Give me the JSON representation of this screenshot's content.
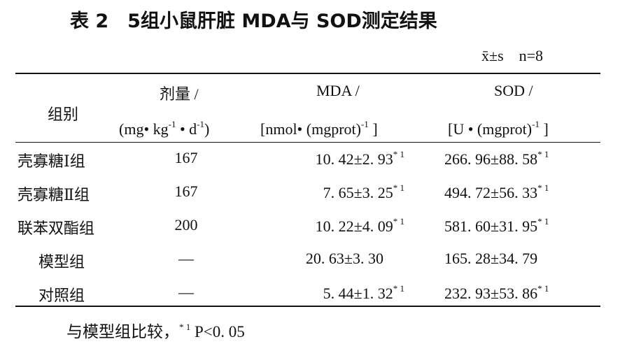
{
  "title": "表 2　5组小鼠肝脏 MDA与 SOD测定结果",
  "note": "x̄±s　n=8",
  "header": {
    "group": "组别",
    "dose": {
      "main": "剂量 /",
      "unit": [
        "(mg• kg",
        "-1",
        " • d",
        "-1",
        ")"
      ]
    },
    "mda": {
      "main": "MDA /",
      "unit": [
        "[nmol• (mgprot)",
        "-1",
        " ]"
      ]
    },
    "sod": {
      "main": "SOD /",
      "unit": [
        "[U • (mgprot)",
        "-1",
        " ]"
      ]
    }
  },
  "rows": [
    {
      "group": "壳寡糖Ⅰ组",
      "dose": "167",
      "mda": "10. 42±2. 93",
      "mda_mark": "* 1",
      "sod": "266. 96±88. 58",
      "sod_mark": "* 1"
    },
    {
      "group": "壳寡糖Ⅱ组",
      "dose": "167",
      "mda": "7. 65±3. 25",
      "mda_mark": "* 1",
      "sod": "494. 72±56. 33",
      "sod_mark": "* 1"
    },
    {
      "group": "联苯双酯组",
      "dose": "200",
      "mda": "10. 22±4. 09",
      "mda_mark": "* 1",
      "sod": "581. 60±31. 95",
      "sod_mark": "* 1"
    },
    {
      "group": "模型组",
      "dose": "—",
      "mda": "20. 63±3. 30",
      "sod": "165. 28±34. 79"
    },
    {
      "group": "对照组",
      "dose": "—",
      "mda": "5. 44±1. 32",
      "mda_mark": "* 1",
      "sod": "232. 93±53. 86",
      "sod_mark": "* 1"
    }
  ],
  "footnote": [
    "与模型组比较，",
    "* 1",
    " P<0. 05"
  ]
}
